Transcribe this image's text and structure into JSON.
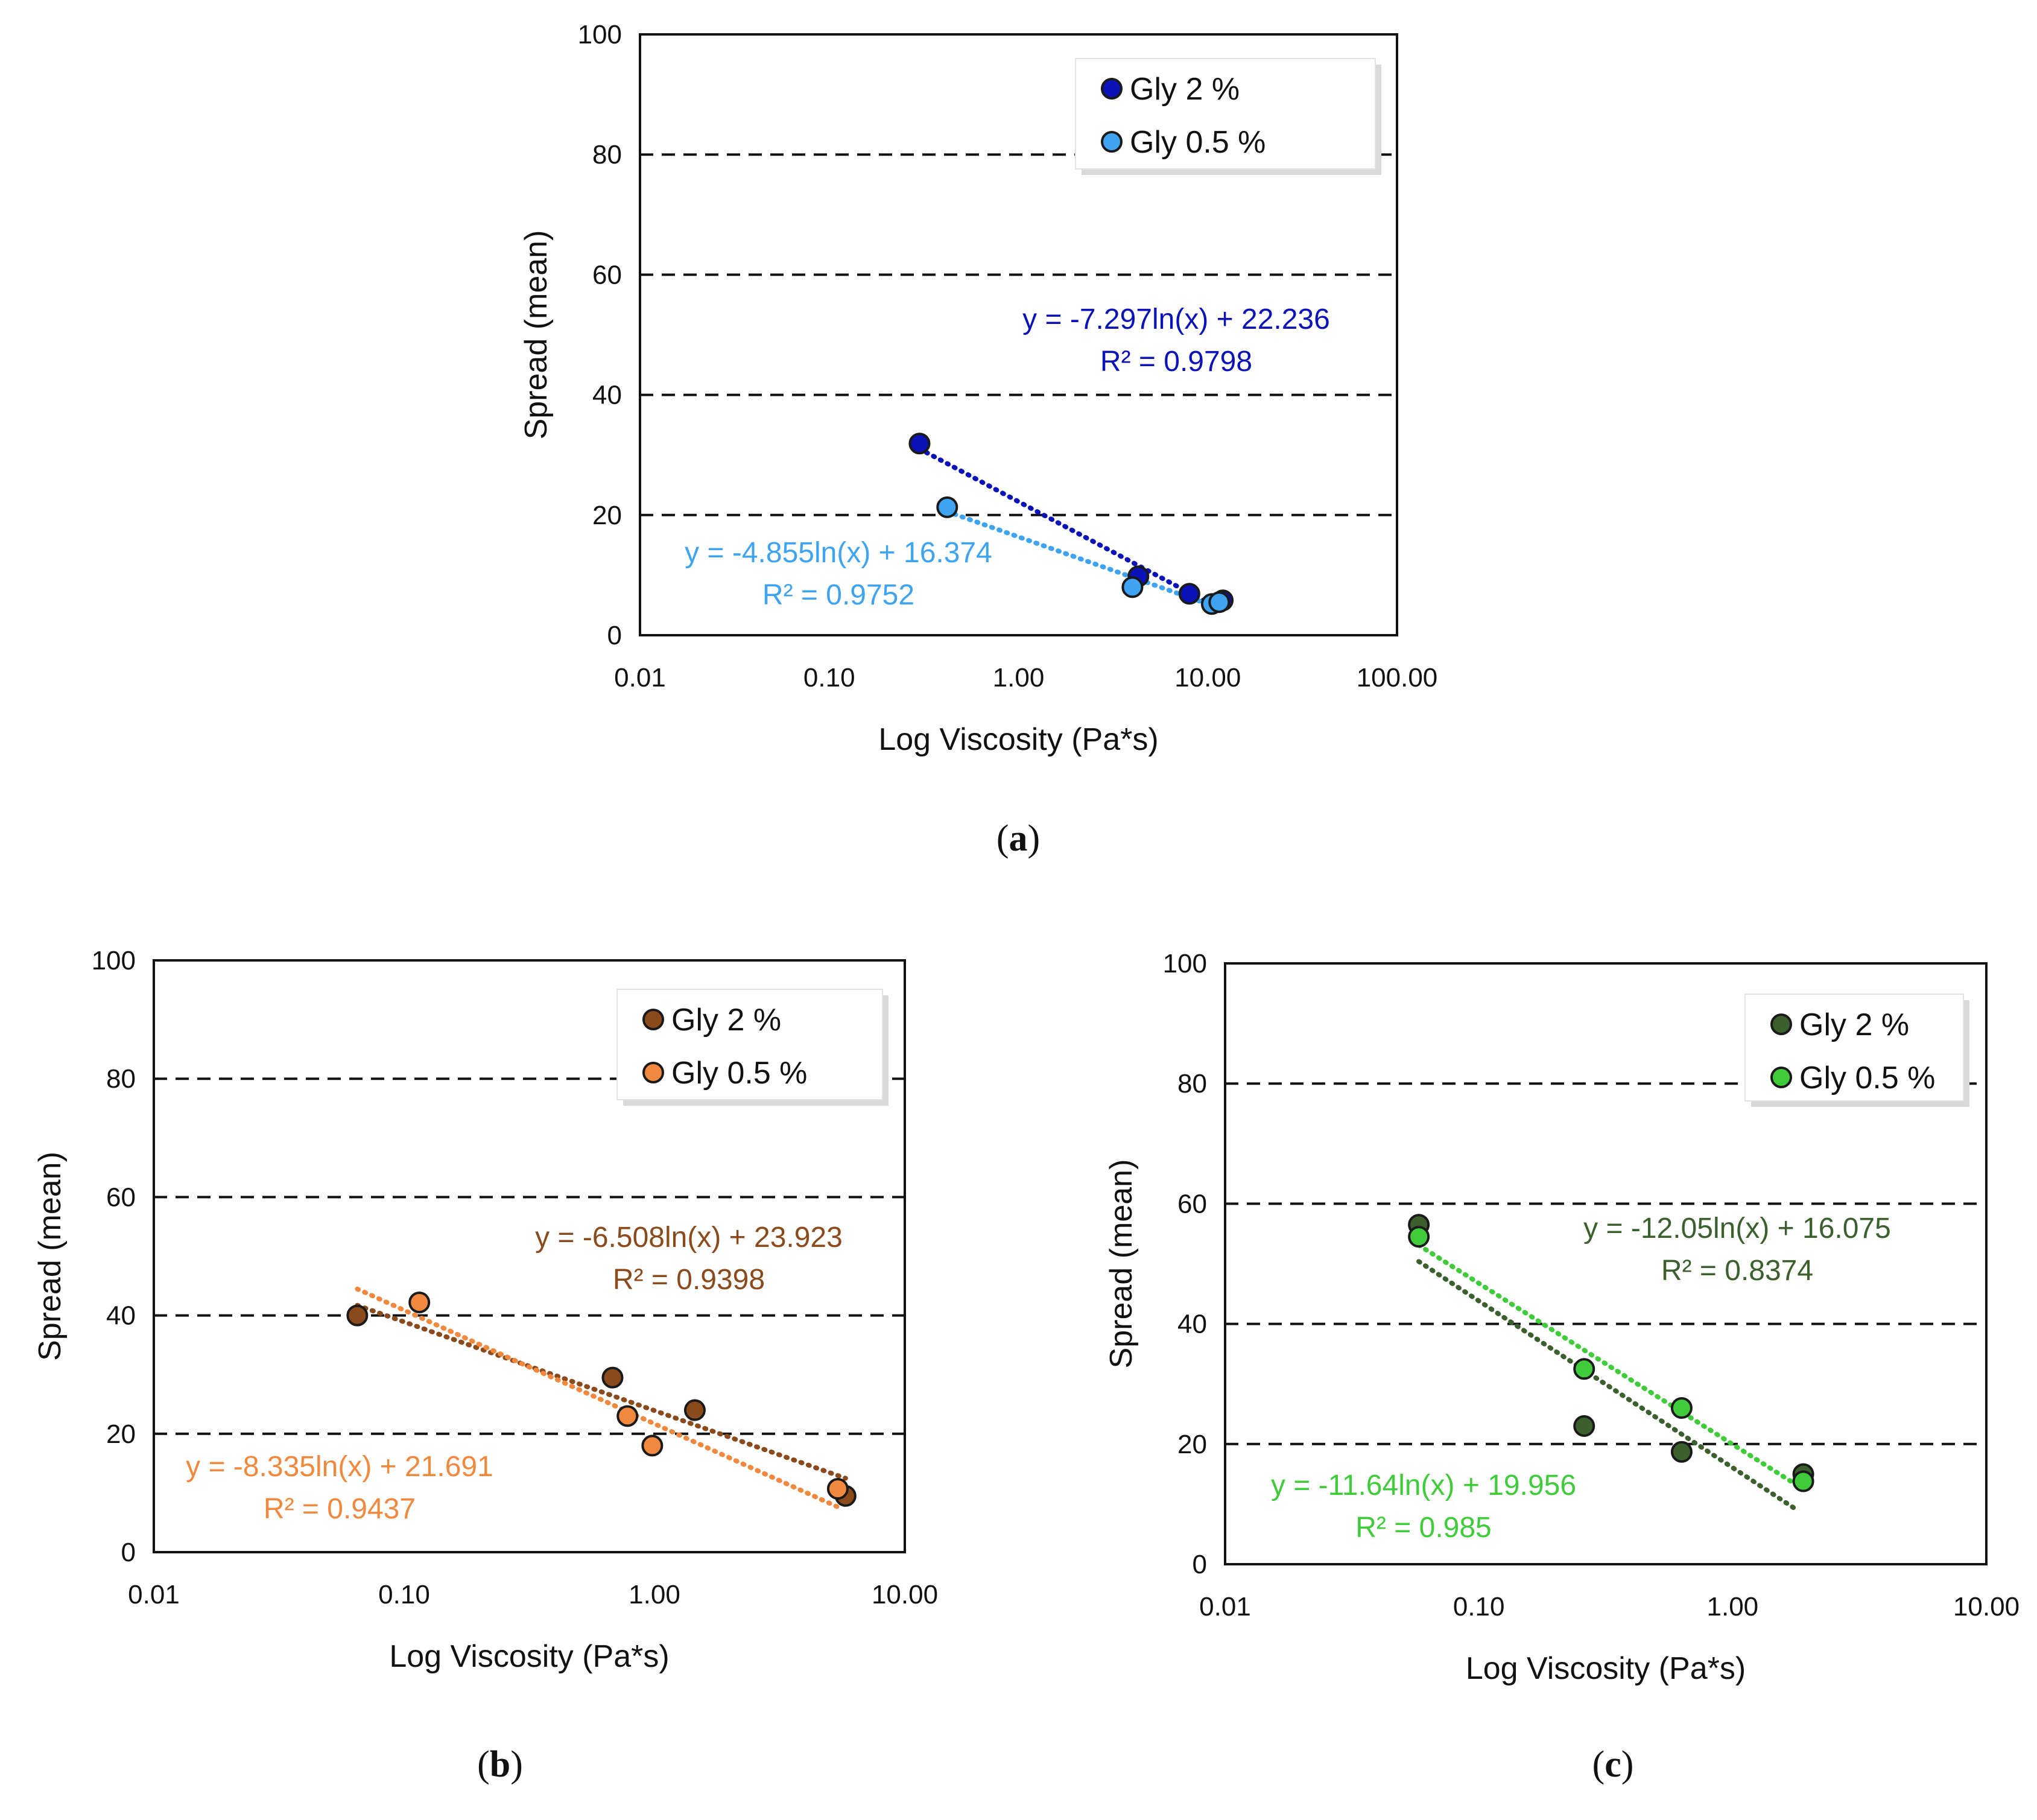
{
  "chart_data": [
    {
      "type": "scatter",
      "panel": "a",
      "caption_letter": "a",
      "xlabel": "Log Viscosity (Pa*s)",
      "ylabel": "Spread (mean)",
      "xscale": "log",
      "xlim": [
        0.01,
        100
      ],
      "ylim": [
        0,
        100
      ],
      "xticks": [
        0.01,
        0.1,
        1,
        10,
        100
      ],
      "xtick_labels": [
        "0.01",
        "0.10",
        "1.00",
        "10.00",
        "100.00"
      ],
      "yticks": [
        0,
        20,
        40,
        60,
        80,
        100
      ],
      "ytick_labels": [
        "0",
        "20",
        "40",
        "60",
        "80",
        "100"
      ],
      "gridlines": "horizontal dashed",
      "legend_position": "top-right",
      "series": [
        {
          "name": "Gly 2 %",
          "color": "#0a12b8",
          "points": [
            [
              0.3,
              31.9
            ],
            [
              4.3,
              9.8
            ],
            [
              8.0,
              6.9
            ],
            [
              12.0,
              5.8
            ]
          ],
          "trendline": {
            "a": -7.297,
            "b": 22.236,
            "x_range": [
              0.3,
              12.0
            ]
          },
          "equation": "y = -7.297ln(x) + 22.236",
          "r2": "R² = 0.9798",
          "equation_position": "upper-middle"
        },
        {
          "name": "Gly 0.5 %",
          "color": "#3ea3f0",
          "points": [
            [
              0.42,
              21.3
            ],
            [
              4.0,
              8.0
            ],
            [
              10.5,
              5.2
            ],
            [
              11.5,
              5.5
            ]
          ],
          "trendline": {
            "a": -4.855,
            "b": 16.374,
            "x_range": [
              0.42,
              11.5
            ]
          },
          "equation": "y = -4.855ln(x) + 16.374",
          "r2": "R² = 0.9752",
          "equation_position": "lower-left"
        }
      ]
    },
    {
      "type": "scatter",
      "panel": "b",
      "caption_letter": "b",
      "xlabel": "Log Viscosity (Pa*s)",
      "ylabel": "Spread (mean)",
      "xscale": "log",
      "xlim": [
        0.01,
        10
      ],
      "ylim": [
        0,
        100
      ],
      "xticks": [
        0.01,
        0.1,
        1,
        10
      ],
      "xtick_labels": [
        "0.01",
        "0.10",
        "1.00",
        "10.00"
      ],
      "yticks": [
        0,
        20,
        40,
        60,
        80,
        100
      ],
      "ytick_labels": [
        "0",
        "20",
        "40",
        "60",
        "80",
        "100"
      ],
      "gridlines": "horizontal dashed",
      "legend_position": "top-right",
      "series": [
        {
          "name": "Gly 2 %",
          "color": "#8b4a1c",
          "points": [
            [
              0.065,
              40.0
            ],
            [
              0.68,
              29.5
            ],
            [
              1.45,
              24.0
            ],
            [
              5.8,
              9.5
            ]
          ],
          "trendline": {
            "a": -6.508,
            "b": 23.923,
            "x_range": [
              0.065,
              5.8
            ]
          },
          "equation": "y = -6.508ln(x) + 23.923",
          "r2": "R² = 0.9398",
          "equation_position": "upper-right"
        },
        {
          "name": "Gly 0.5 %",
          "color": "#f0883e",
          "points": [
            [
              0.115,
              42.2
            ],
            [
              0.78,
              23.0
            ],
            [
              0.98,
              18.0
            ],
            [
              5.4,
              10.7
            ]
          ],
          "trendline": {
            "a": -8.335,
            "b": 21.691,
            "x_range": [
              0.065,
              5.4
            ]
          },
          "equation": "y = -8.335ln(x) + 21.691",
          "r2": "R² = 0.9437",
          "equation_position": "lower-left"
        }
      ]
    },
    {
      "type": "scatter",
      "panel": "c",
      "caption_letter": "c",
      "xlabel": "Log Viscosity (Pa*s)",
      "ylabel": "Spread (mean)",
      "xscale": "log",
      "xlim": [
        0.01,
        10
      ],
      "ylim": [
        0,
        100
      ],
      "xticks": [
        0.01,
        0.1,
        1,
        10
      ],
      "xtick_labels": [
        "0.01",
        "0.10",
        "1.00",
        "10.00"
      ],
      "yticks": [
        0,
        20,
        40,
        60,
        80,
        100
      ],
      "ytick_labels": [
        "0",
        "20",
        "40",
        "60",
        "80",
        "100"
      ],
      "gridlines": "horizontal dashed",
      "legend_position": "top-right",
      "series": [
        {
          "name": "Gly 2 %",
          "color": "#3c5f2e",
          "points": [
            [
              0.058,
              56.5
            ],
            [
              0.26,
              23.0
            ],
            [
              0.63,
              18.7
            ],
            [
              1.9,
              15.0
            ]
          ],
          "trendline": {
            "a": -12.05,
            "b": 16.075,
            "x_range": [
              0.058,
              1.75
            ]
          },
          "equation": "y = -12.05ln(x) + 16.075",
          "r2": "R² = 0.8374",
          "equation_position": "upper-right"
        },
        {
          "name": "Gly 0.5 %",
          "color": "#3fcb3a",
          "points": [
            [
              0.058,
              54.5
            ],
            [
              0.26,
              32.5
            ],
            [
              0.63,
              26.0
            ],
            [
              1.9,
              13.8
            ]
          ],
          "trendline": {
            "a": -11.64,
            "b": 19.956,
            "x_range": [
              0.058,
              1.75
            ]
          },
          "equation": "y = -11.64ln(x) + 19.956",
          "r2": "R² = 0.985",
          "equation_position": "lower-left"
        }
      ]
    }
  ]
}
